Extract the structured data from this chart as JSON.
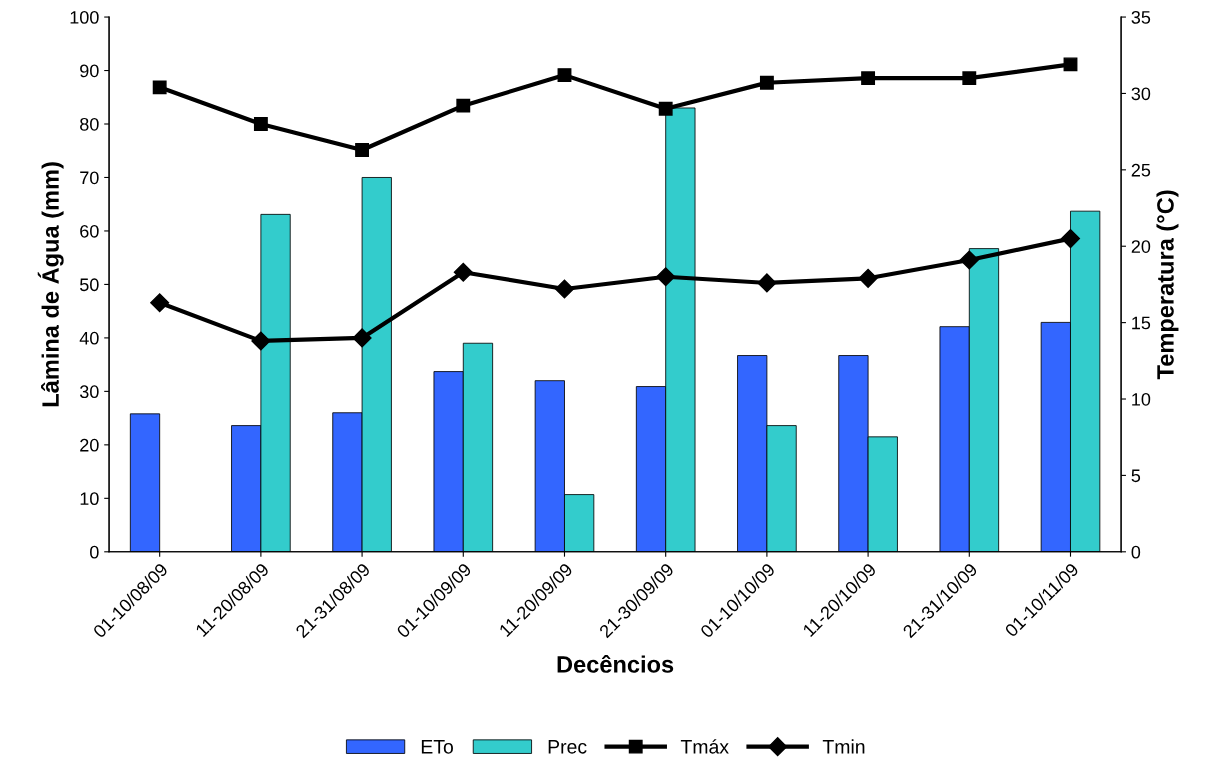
{
  "chart_data": {
    "type": "bar",
    "xlabel": "Decêncios",
    "ylabel": "Lâmina de Água (mm)",
    "y2label": "Temperatura (°C)",
    "categories": [
      "01-10/08/09",
      "11-20/08/09",
      "21-31/08/09",
      "01-10/09/09",
      "11-20/09/09",
      "21-30/09/09",
      "01-10/10/09",
      "11-20/10/09",
      "21-31/10/09",
      "01-10/11/09"
    ],
    "series": [
      {
        "name": "ETo",
        "color": "#3366ff",
        "values": [
          25.8,
          23.6,
          26.0,
          33.7,
          32.0,
          30.9,
          36.7,
          36.7,
          42.1,
          42.9
        ]
      },
      {
        "name": "Prec",
        "color": "#33cccc",
        "values": [
          null,
          63.1,
          70.0,
          39.0,
          10.7,
          83.0,
          23.6,
          21.5,
          56.7,
          63.7
        ]
      },
      {
        "name": "Tmáx",
        "type": "line",
        "axis": "y2",
        "color": "#000000",
        "marker": "square",
        "values": [
          30.4,
          28.0,
          26.3,
          29.2,
          31.2,
          29.0,
          30.7,
          31.0,
          31.0,
          31.9
        ]
      },
      {
        "name": "Tmin",
        "type": "line",
        "axis": "y2",
        "color": "#000000",
        "marker": "diamond",
        "values": [
          16.3,
          13.8,
          14.0,
          18.3,
          17.2,
          18.0,
          17.6,
          17.9,
          19.1,
          20.5
        ]
      }
    ],
    "ylim": [
      0,
      100
    ],
    "yticks": [
      0,
      10,
      20,
      30,
      40,
      50,
      60,
      70,
      80,
      90,
      100
    ],
    "y2lim": [
      0,
      35
    ],
    "y2ticks": [
      0,
      5,
      10,
      15,
      20,
      25,
      30,
      35
    ],
    "grid": false,
    "legend": "bottom"
  }
}
